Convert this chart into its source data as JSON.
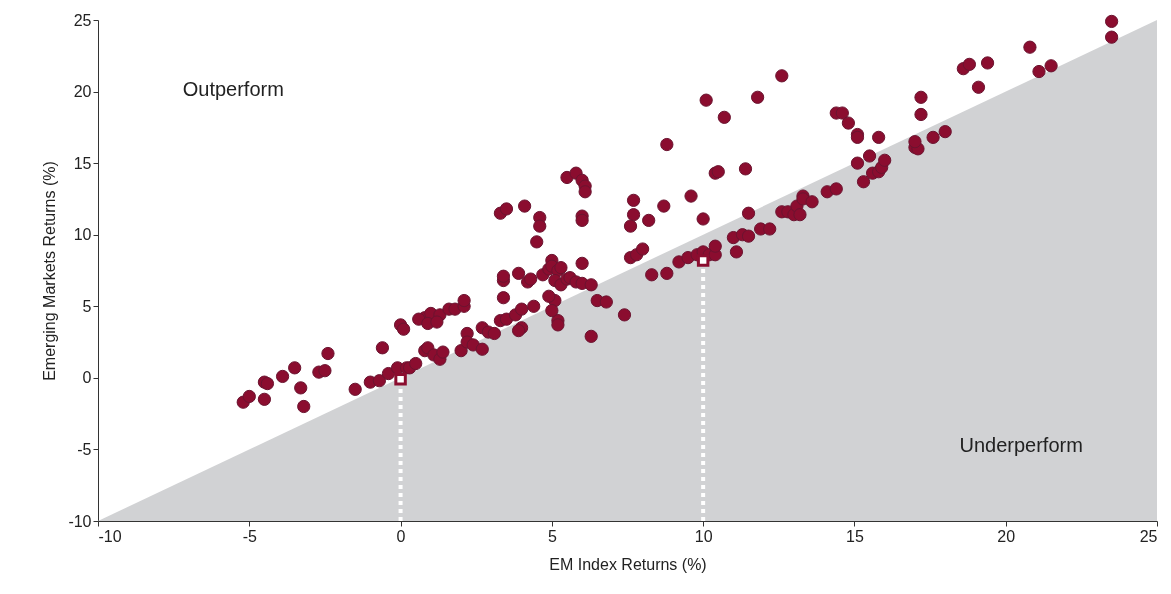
{
  "chart_data": {
    "type": "scatter",
    "xlabel": "EM Index Returns (%)",
    "ylabel": "Emerging Markets Returns (%)",
    "xlim": [
      -10,
      25
    ],
    "xticks": [
      -10,
      -5,
      0,
      5,
      10,
      15,
      20,
      25
    ],
    "ylim": [
      -10,
      25
    ],
    "yticks": [
      -10,
      -5,
      0,
      5,
      10,
      15,
      20,
      25
    ],
    "annotations": [
      "Outperform",
      "Underperform"
    ],
    "series": [
      {
        "type": "area",
        "color": "#d1d2d4",
        "x": [
          -10,
          25
        ],
        "values": [
          -10,
          25
        ]
      },
      {
        "color": "#8b0d2f",
        "marker": "circle",
        "x": [
          -5.2,
          -5.0,
          -4.5,
          -4.4,
          -4.5,
          -3.9,
          -3.5,
          -3.3,
          -3.2,
          -2.7,
          -2.5,
          -2.4,
          -1.5,
          -1.0,
          -0.7,
          -0.6,
          -0.4,
          0.0,
          0.1,
          -0.1,
          0.2,
          0.3,
          0.5,
          0.8,
          0.6,
          1.0,
          0.9,
          1.3,
          1.2,
          0.8,
          0.9,
          1.1,
          1.3,
          1.4,
          1.6,
          1.8,
          2.1,
          2.1,
          2.0,
          2.2,
          2.2,
          2.4,
          2.7,
          2.9,
          2.7,
          3.1,
          3.3,
          3.5,
          3.4,
          3.4,
          3.4,
          3.3,
          3.5,
          3.9,
          3.8,
          4.0,
          3.9,
          4.0,
          4.2,
          4.3,
          4.1,
          4.4,
          4.5,
          4.6,
          4.6,
          4.7,
          4.9,
          5.0,
          5.0,
          5.2,
          5.3,
          5.1,
          5.3,
          5.5,
          5.2,
          5.2,
          5.1,
          5.0,
          4.9,
          5.5,
          5.8,
          6.0,
          6.1,
          6.1,
          6.0,
          6.0,
          6.0,
          5.6,
          5.8,
          6.0,
          6.3,
          6.3,
          6.5,
          6.8,
          7.4,
          7.6,
          7.8,
          7.7,
          7.7,
          7.6,
          8.0,
          8.2,
          8.7,
          8.8,
          8.3,
          8.8,
          9.2,
          9.5,
          9.8,
          10.0,
          10.2,
          10.4,
          10.4,
          9.6,
          10.0,
          10.1,
          10.4,
          10.5,
          10.7,
          11.0,
          11.3,
          11.1,
          11.5,
          11.4,
          11.5,
          11.8,
          11.9,
          12.2,
          12.6,
          12.6,
          12.8,
          13.0,
          13.1,
          13.3,
          13.2,
          13.3,
          13.6,
          14.1,
          14.4,
          14.4,
          14.6,
          14.8,
          15.1,
          15.1,
          15.3,
          15.1,
          15.5,
          15.6,
          15.8,
          15.9,
          16.0,
          15.8,
          17.0,
          17.1,
          17.0,
          17.2,
          17.2,
          17.6,
          18.0,
          18.6,
          18.8,
          19.1,
          19.4,
          20.8,
          21.1,
          21.5,
          23.5,
          23.5
        ],
        "values": [
          -1.7,
          -1.3,
          -0.3,
          -0.4,
          -1.5,
          0.1,
          0.7,
          -0.7,
          -2.0,
          0.4,
          0.5,
          1.7,
          -0.8,
          -0.3,
          -0.2,
          2.1,
          0.3,
          3.7,
          3.4,
          0.7,
          0.7,
          0.7,
          1.0,
          4.2,
          4.1,
          4.5,
          3.8,
          4.4,
          3.9,
          1.9,
          2.1,
          1.6,
          1.3,
          1.8,
          4.8,
          4.8,
          5.0,
          5.4,
          1.9,
          3.1,
          2.5,
          2.3,
          3.5,
          3.2,
          2.0,
          3.1,
          4.0,
          4.1,
          5.6,
          6.8,
          7.1,
          11.5,
          11.8,
          7.3,
          4.4,
          3.5,
          3.3,
          4.8,
          6.7,
          6.9,
          12.0,
          5.0,
          9.5,
          11.2,
          10.6,
          7.2,
          7.6,
          8.2,
          7.8,
          7.5,
          7.7,
          6.8,
          6.5,
          6.9,
          4.0,
          3.7,
          5.4,
          4.7,
          5.7,
          14.0,
          14.3,
          13.8,
          13.4,
          13.0,
          11.3,
          11.0,
          8.0,
          7.0,
          6.7,
          6.6,
          6.5,
          2.9,
          5.4,
          5.3,
          4.4,
          8.4,
          8.6,
          12.4,
          11.4,
          10.6,
          9.0,
          11.0,
          12.0,
          16.3,
          7.2,
          7.3,
          8.1,
          8.4,
          8.6,
          8.8,
          8.6,
          8.6,
          9.2,
          12.7,
          11.1,
          19.4,
          14.3,
          14.4,
          18.2,
          9.8,
          10.0,
          8.8,
          9.9,
          14.6,
          11.5,
          19.6,
          10.4,
          10.4,
          11.6,
          21.1,
          11.6,
          11.4,
          12.0,
          12.7,
          11.4,
          12.5,
          12.3,
          13.0,
          13.2,
          18.5,
          18.5,
          17.8,
          17.0,
          16.8,
          13.7,
          15.0,
          15.5,
          14.3,
          14.4,
          14.7,
          15.2,
          16.8,
          16.1,
          16.0,
          16.5,
          18.4,
          19.6,
          16.8,
          17.2,
          21.6,
          21.9,
          20.3,
          22.0,
          23.1,
          21.4,
          21.8,
          23.8,
          24.9
        ]
      },
      {
        "type": "line",
        "color": "#ffffff",
        "line_style": "dotted",
        "x": [
          0,
          0
        ],
        "values": [
          -10,
          -0.1
        ]
      },
      {
        "type": "line",
        "color": "#ffffff",
        "line_style": "dotted",
        "x": [
          10,
          10
        ],
        "values": [
          -10,
          8.2
        ]
      },
      {
        "type": "scatter",
        "color": "#8b0d2f",
        "marker": "square",
        "x": [
          0,
          10
        ],
        "values": [
          -0.1,
          8.2
        ]
      }
    ]
  }
}
